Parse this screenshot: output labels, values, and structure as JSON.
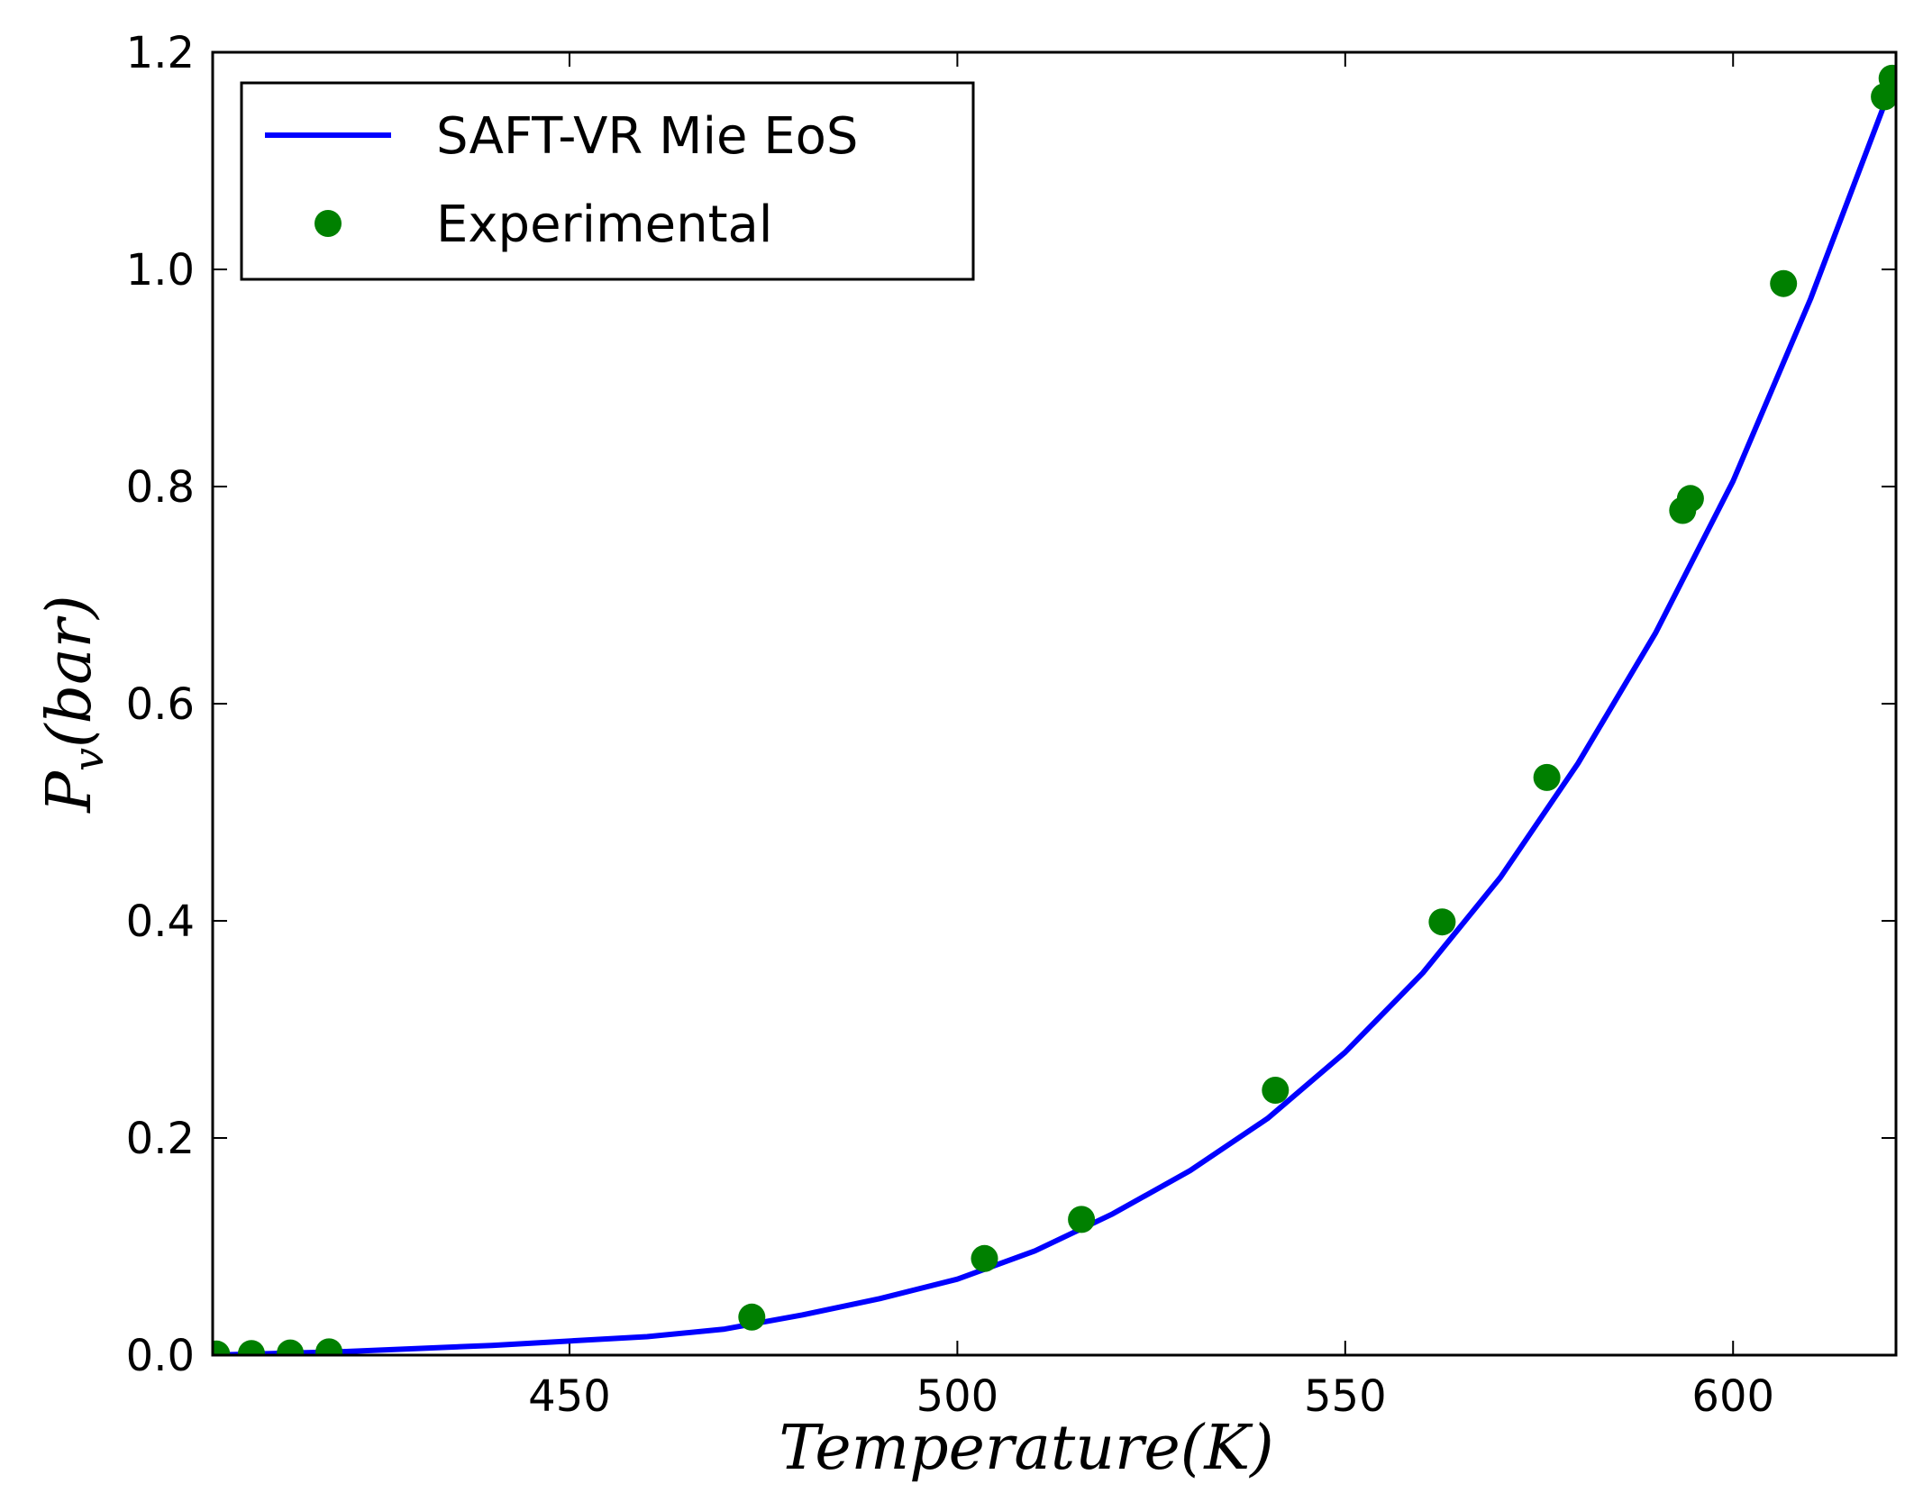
{
  "chart_data": {
    "type": "line",
    "xlabel": "Temperature(K)",
    "ylabel": "P_v(bar)",
    "ylabel_main": "P",
    "ylabel_sub": "v",
    "ylabel_rest": "(bar)",
    "xlim": [
      404,
      621
    ],
    "ylim": [
      0.0,
      1.2
    ],
    "xticks": [
      450,
      500,
      550,
      600
    ],
    "xtick_labels": [
      "450",
      "500",
      "550",
      "600"
    ],
    "yticks": [
      0.0,
      0.2,
      0.4,
      0.6,
      0.8,
      1.0,
      1.2
    ],
    "ytick_labels": [
      "0.0",
      "0.2",
      "0.4",
      "0.6",
      "0.8",
      "1.0",
      "1.2"
    ],
    "grid": false,
    "legend_position": "top-left",
    "series": [
      {
        "name": "SAFT-VR Mie EoS",
        "kind": "line",
        "color": "#0000ff",
        "x": [
          404,
          420,
          440,
          460,
          470,
          480,
          490,
          500,
          510,
          520,
          530,
          540,
          550,
          560,
          570,
          580,
          590,
          600,
          610,
          621
        ],
        "y": [
          0.0,
          0.003,
          0.009,
          0.017,
          0.024,
          0.037,
          0.052,
          0.07,
          0.096,
          0.13,
          0.17,
          0.218,
          0.279,
          0.352,
          0.44,
          0.545,
          0.665,
          0.805,
          0.973,
          1.18
        ]
      },
      {
        "name": "Experimental",
        "kind": "scatter",
        "color": "#008000",
        "x": [
          404.5,
          409,
          414,
          419,
          473.5,
          503.5,
          516,
          541,
          562.5,
          576,
          593.5,
          594.5,
          606.5,
          619.5,
          620.5
        ],
        "y": [
          0.001,
          0.0015,
          0.002,
          0.003,
          0.035,
          0.089,
          0.125,
          0.244,
          0.399,
          0.532,
          0.778,
          0.789,
          0.987,
          1.159,
          1.176
        ]
      }
    ]
  }
}
